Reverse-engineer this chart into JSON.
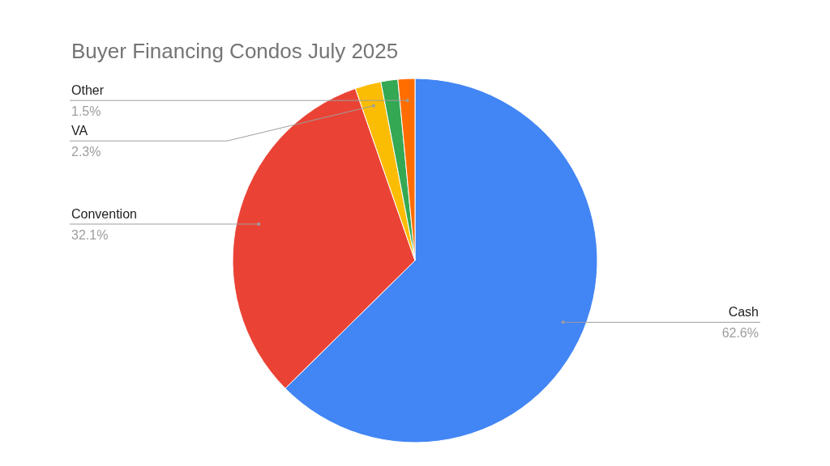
{
  "chart_data": {
    "type": "pie",
    "title": "Buyer Financing Condos July 2025",
    "categories": [
      "Cash",
      "Convention",
      "VA",
      null,
      "Other"
    ],
    "values": [
      62.6,
      32.1,
      2.3,
      1.5,
      1.5
    ],
    "colors": [
      "#4285f4",
      "#ea4335",
      "#fbbc04",
      "#34a853",
      "#ff6d01"
    ],
    "value_labels": [
      "62.6%",
      "32.1%",
      "2.3%",
      null,
      "1.5%"
    ]
  }
}
